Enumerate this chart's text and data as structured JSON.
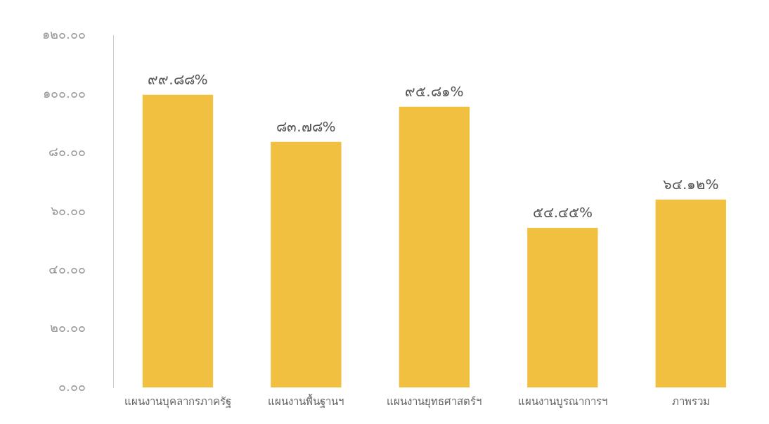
{
  "chart_data": {
    "type": "bar",
    "categories": [
      "แผนงานบุคลากรภาครัฐ",
      "แผนงานพื้นฐานฯ",
      "แผนงานยุทธศาสตร์ฯ",
      "แผนงานบูรณาการฯ",
      "ภาพรวม"
    ],
    "values": [
      99.88,
      83.78,
      95.81,
      54.45,
      64.12
    ],
    "value_labels": [
      "๙๙.๘๘%",
      "๘๓.๗๘%",
      "๙๕.๘๑%",
      "๕๔.๔๕%",
      "๖๔.๑๒%"
    ],
    "color": "#f2c041",
    "ylim": [
      0,
      120
    ],
    "yticks": [
      {
        "value": 0,
        "label": "๐.๐๐"
      },
      {
        "value": 20,
        "label": "๒๐.๐๐"
      },
      {
        "value": 40,
        "label": "๔๐.๐๐"
      },
      {
        "value": 60,
        "label": "๖๐.๐๐"
      },
      {
        "value": 80,
        "label": "๘๐.๐๐"
      },
      {
        "value": 100,
        "label": "๑๐๐.๐๐"
      },
      {
        "value": 120,
        "label": "๑๒๐.๐๐"
      }
    ],
    "grid": false,
    "legend": false
  }
}
